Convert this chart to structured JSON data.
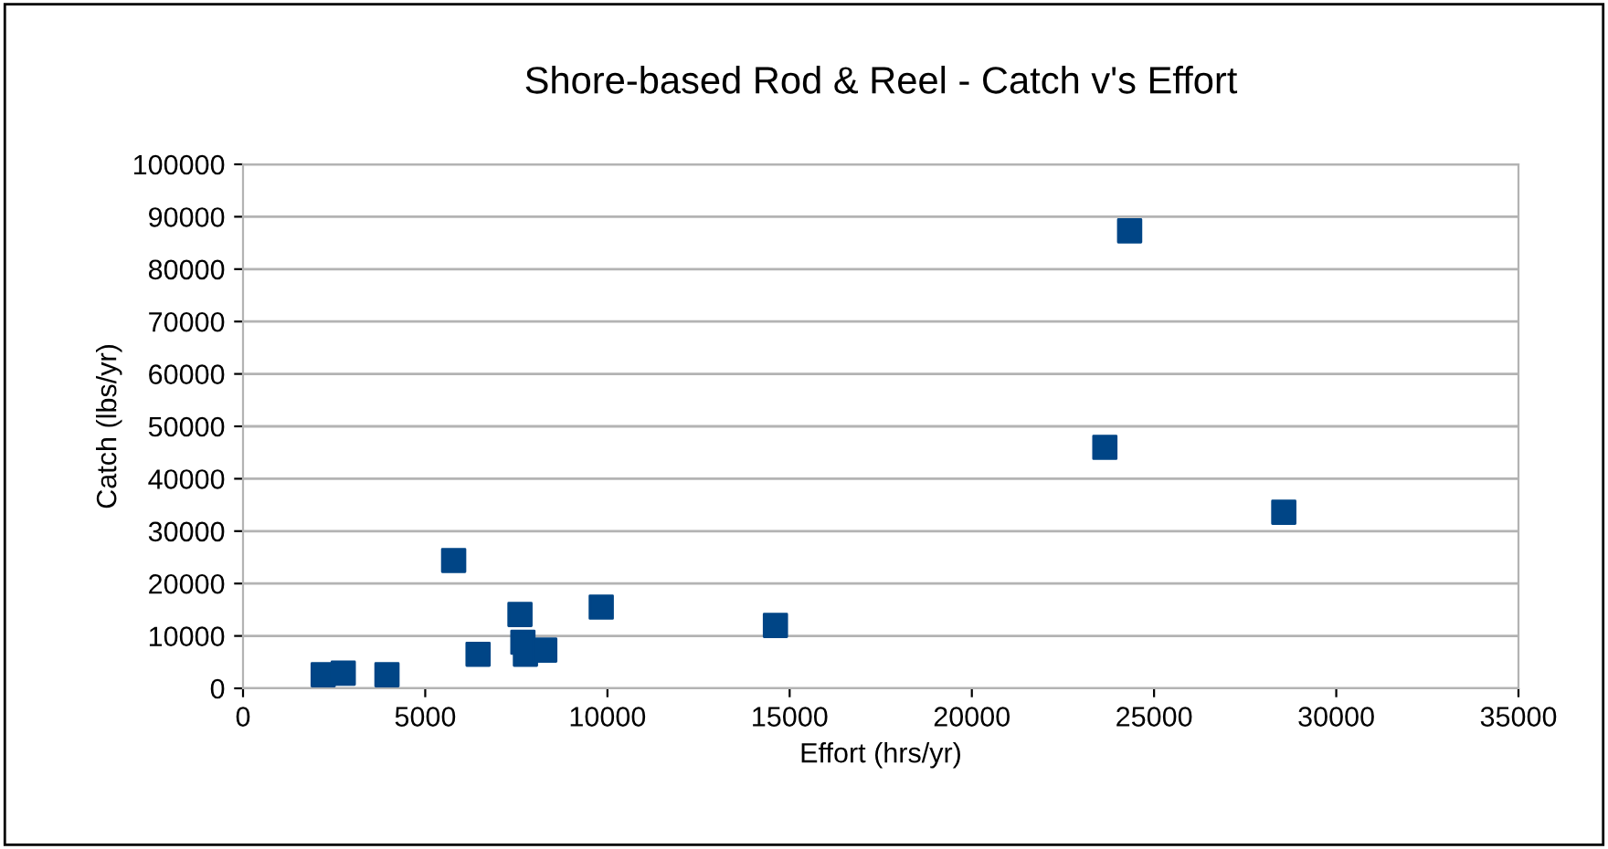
{
  "chart_data": {
    "type": "scatter",
    "title": "Shore-based Rod & Reel - Catch v's Effort",
    "xlabel": "Effort (hrs/yr)",
    "ylabel": "Catch (lbs/yr)",
    "x": [
      2200,
      2750,
      3950,
      5780,
      6450,
      7600,
      7680,
      7750,
      8280,
      9830,
      14610,
      23650,
      24330,
      28560
    ],
    "series": [
      {
        "color": "#004586",
        "values": [
          2600,
          2900,
          2600,
          24400,
          6500,
          14100,
          8800,
          6500,
          7300,
          15500,
          12000,
          46000,
          87300,
          33600
        ]
      }
    ],
    "xlim": [
      0,
      35000
    ],
    "xticks": [
      0,
      5000,
      10000,
      15000,
      20000,
      25000,
      30000,
      35000
    ],
    "ylim": [
      0,
      100000
    ],
    "yticks": [
      0,
      10000,
      20000,
      30000,
      40000,
      50000,
      60000,
      70000,
      80000,
      90000,
      100000
    ],
    "grid": "y",
    "marker": "square",
    "legend": false
  }
}
